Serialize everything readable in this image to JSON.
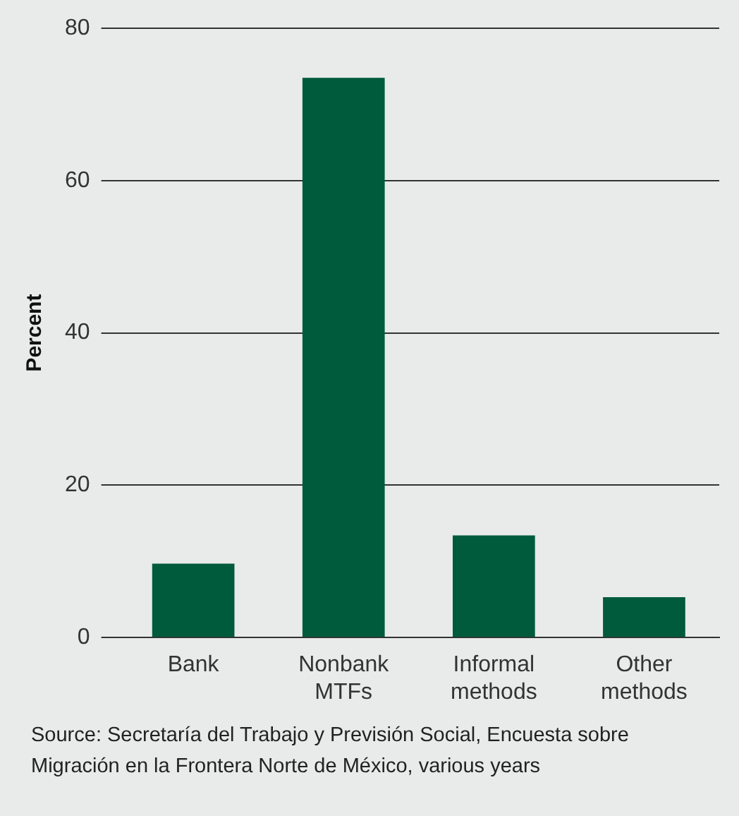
{
  "chart_data": {
    "type": "bar",
    "ylabel": "Percent",
    "categories": [
      "Bank",
      "Nonbank MTFs",
      "Informal methods",
      "Other methods"
    ],
    "values": [
      9.7,
      73.5,
      13.4,
      5.3
    ],
    "color": "#005a3c",
    "ylim": [
      0,
      80
    ],
    "yticks": [
      0,
      20,
      40,
      60,
      80
    ],
    "grid": "y",
    "annotations": [
      "Source: Secretaría del Trabajo y Previsión Social, Encuesta sobre Migración en la Frontera Norte de México, various years"
    ]
  }
}
